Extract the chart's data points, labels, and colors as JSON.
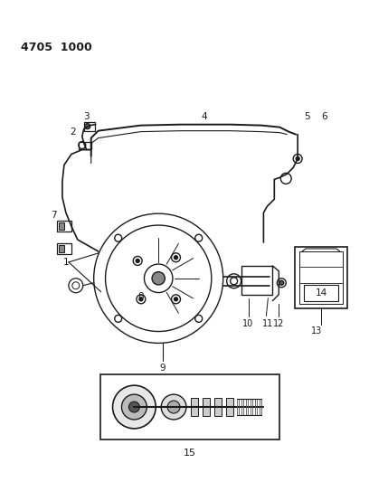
{
  "title": "4705  1000",
  "bg_color": "#ffffff",
  "lc": "#1a1a1a",
  "fig_width": 4.08,
  "fig_height": 5.33,
  "dpi": 100
}
